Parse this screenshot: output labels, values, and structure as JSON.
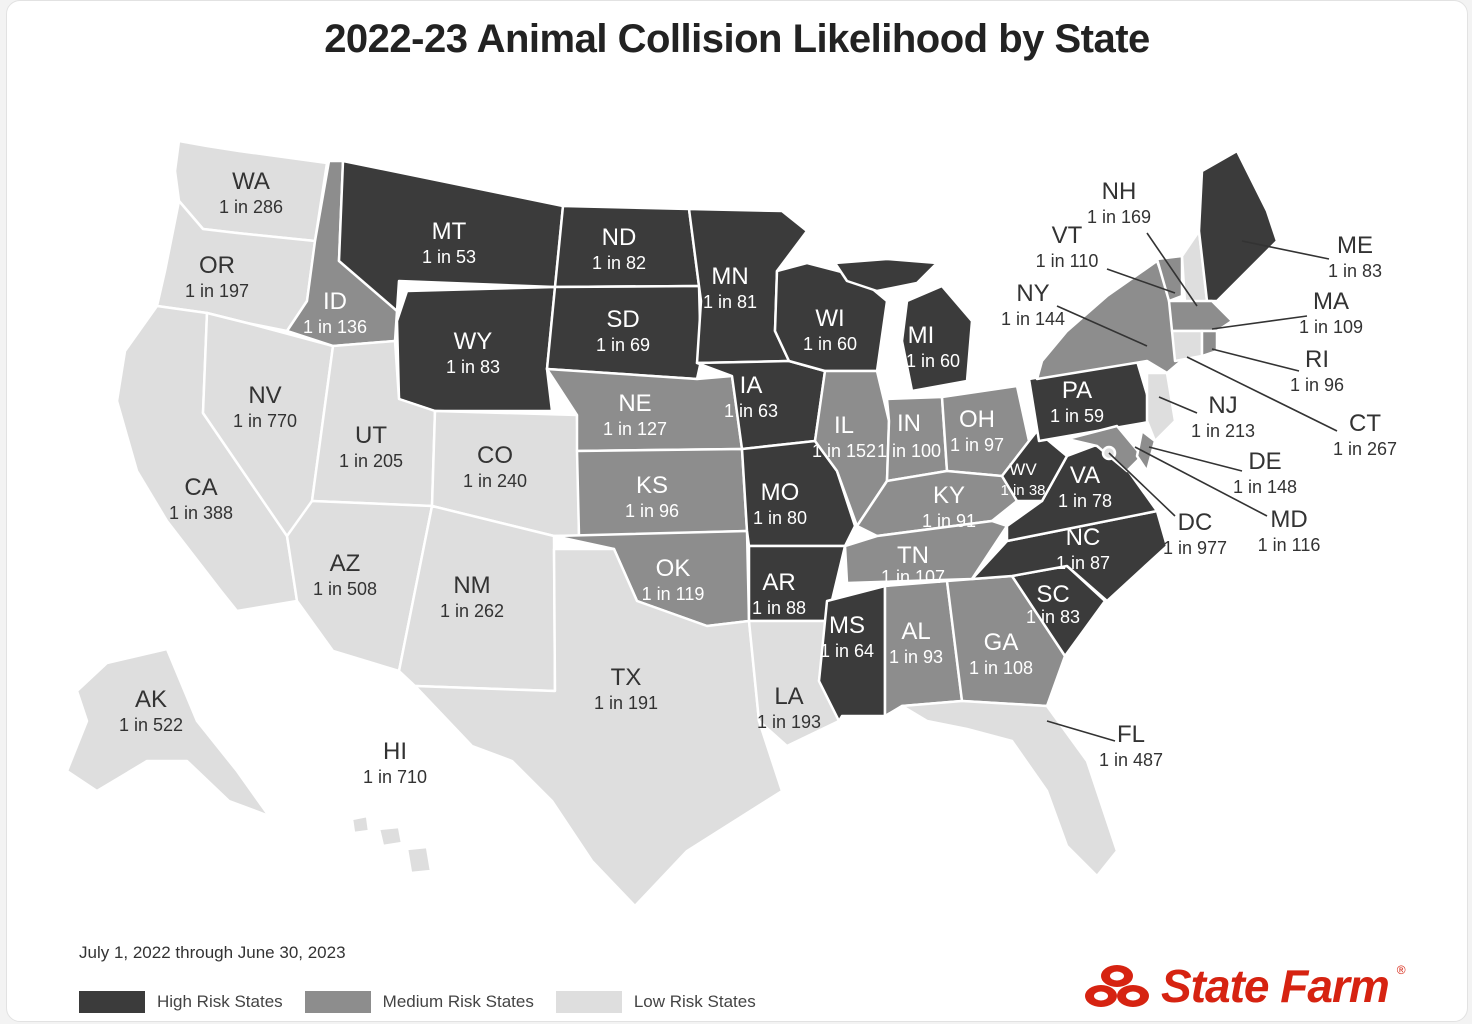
{
  "title": "2022-23 Animal Collision Likelihood by State",
  "date_range": "July 1, 2022 through June 30, 2023",
  "legend": {
    "high": {
      "label": "High Risk States",
      "color": "#3b3b3b"
    },
    "medium": {
      "label": "Medium Risk States",
      "color": "#8d8d8d"
    },
    "low": {
      "label": "Low Risk States",
      "color": "#dedede"
    }
  },
  "brand": {
    "name": "State Farm",
    "mark": "®",
    "color": "#d62311"
  },
  "states": {
    "WA": {
      "abbr": "WA",
      "odds": "1 in 286",
      "risk": "low"
    },
    "OR": {
      "abbr": "OR",
      "odds": "1 in 197",
      "risk": "low"
    },
    "CA": {
      "abbr": "CA",
      "odds": "1 in 388",
      "risk": "low"
    },
    "NV": {
      "abbr": "NV",
      "odds": "1 in 770",
      "risk": "low"
    },
    "ID": {
      "abbr": "ID",
      "odds": "1 in 136",
      "risk": "medium"
    },
    "MT": {
      "abbr": "MT",
      "odds": "1 in 53",
      "risk": "high"
    },
    "WY": {
      "abbr": "WY",
      "odds": "1 in 83",
      "risk": "high"
    },
    "UT": {
      "abbr": "UT",
      "odds": "1 in 205",
      "risk": "low"
    },
    "CO": {
      "abbr": "CO",
      "odds": "1 in 240",
      "risk": "low"
    },
    "AZ": {
      "abbr": "AZ",
      "odds": "1 in 508",
      "risk": "low"
    },
    "NM": {
      "abbr": "NM",
      "odds": "1 in 262",
      "risk": "low"
    },
    "ND": {
      "abbr": "ND",
      "odds": "1 in 82",
      "risk": "high"
    },
    "SD": {
      "abbr": "SD",
      "odds": "1 in 69",
      "risk": "high"
    },
    "NE": {
      "abbr": "NE",
      "odds": "1 in 127",
      "risk": "medium"
    },
    "KS": {
      "abbr": "KS",
      "odds": "1 in 96",
      "risk": "medium"
    },
    "OK": {
      "abbr": "OK",
      "odds": "1 in 119",
      "risk": "medium"
    },
    "TX": {
      "abbr": "TX",
      "odds": "1 in 191",
      "risk": "low"
    },
    "MN": {
      "abbr": "MN",
      "odds": "1 in 81",
      "risk": "high"
    },
    "IA": {
      "abbr": "IA",
      "odds": "1 in 63",
      "risk": "high"
    },
    "MO": {
      "abbr": "MO",
      "odds": "1 in 80",
      "risk": "high"
    },
    "AR": {
      "abbr": "AR",
      "odds": "1 in 88",
      "risk": "high"
    },
    "LA": {
      "abbr": "LA",
      "odds": "1 in 193",
      "risk": "low"
    },
    "WI": {
      "abbr": "WI",
      "odds": "1 in 60",
      "risk": "high"
    },
    "IL": {
      "abbr": "IL",
      "odds": "1 in 152",
      "risk": "medium"
    },
    "MI": {
      "abbr": "MI",
      "odds": "1 in 60",
      "risk": "high"
    },
    "IN": {
      "abbr": "IN",
      "odds": "1 in 100",
      "risk": "medium"
    },
    "OH": {
      "abbr": "OH",
      "odds": "1 in 97",
      "risk": "medium"
    },
    "KY": {
      "abbr": "KY",
      "odds": "1 in 91",
      "risk": "medium"
    },
    "TN": {
      "abbr": "TN",
      "odds": "1 in 107",
      "risk": "medium"
    },
    "MS": {
      "abbr": "MS",
      "odds": "1 in 64",
      "risk": "high"
    },
    "AL": {
      "abbr": "AL",
      "odds": "1 in 93",
      "risk": "medium"
    },
    "GA": {
      "abbr": "GA",
      "odds": "1 in 108",
      "risk": "medium"
    },
    "FL": {
      "abbr": "FL",
      "odds": "1 in 487",
      "risk": "low"
    },
    "SC": {
      "abbr": "SC",
      "odds": "1 in 83",
      "risk": "high"
    },
    "NC": {
      "abbr": "NC",
      "odds": "1 in 87",
      "risk": "high"
    },
    "VA": {
      "abbr": "VA",
      "odds": "1 in 78",
      "risk": "high"
    },
    "WV": {
      "abbr": "WV",
      "odds": "1 in 38",
      "risk": "high"
    },
    "PA": {
      "abbr": "PA",
      "odds": "1 in 59",
      "risk": "high"
    },
    "NY": {
      "abbr": "NY",
      "odds": "1 in 144",
      "risk": "medium"
    },
    "VT": {
      "abbr": "VT",
      "odds": "1 in 110",
      "risk": "medium"
    },
    "NH": {
      "abbr": "NH",
      "odds": "1 in 169",
      "risk": "low"
    },
    "ME": {
      "abbr": "ME",
      "odds": "1 in 83",
      "risk": "high"
    },
    "MA": {
      "abbr": "MA",
      "odds": "1 in 109",
      "risk": "medium"
    },
    "RI": {
      "abbr": "RI",
      "odds": "1 in 96",
      "risk": "medium"
    },
    "CT": {
      "abbr": "CT",
      "odds": "1 in 267",
      "risk": "low"
    },
    "NJ": {
      "abbr": "NJ",
      "odds": "1 in 213",
      "risk": "low"
    },
    "DE": {
      "abbr": "DE",
      "odds": "1 in 148",
      "risk": "medium"
    },
    "MD": {
      "abbr": "MD",
      "odds": "1 in 116",
      "risk": "medium"
    },
    "DC": {
      "abbr": "DC",
      "odds": "1 in 977",
      "risk": "low"
    },
    "AK": {
      "abbr": "AK",
      "odds": "1 in 522",
      "risk": "low"
    },
    "HI": {
      "abbr": "HI",
      "odds": "1 in 710",
      "risk": "low"
    }
  }
}
